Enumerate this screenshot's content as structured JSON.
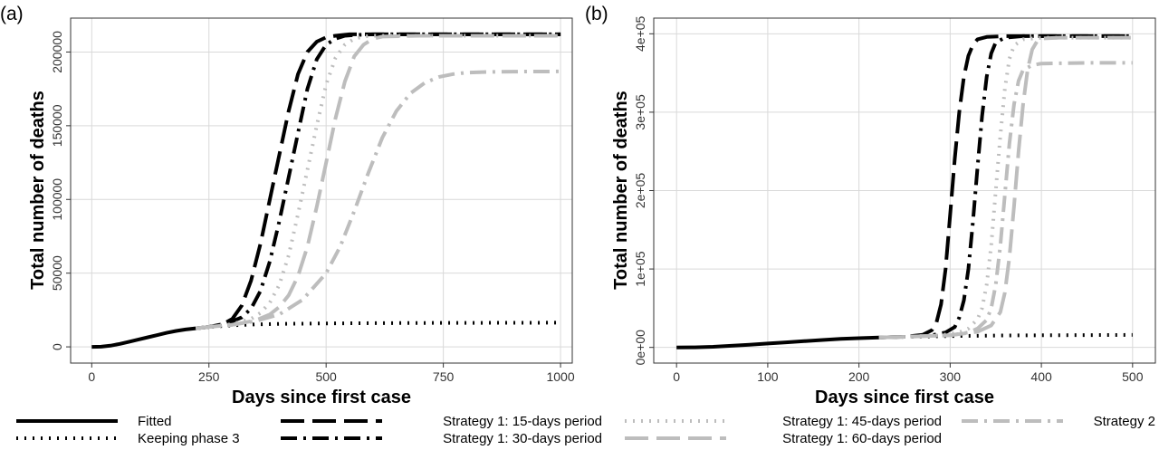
{
  "chart_data": [
    {
      "type": "line",
      "panel_label": "(a)",
      "xlabel": "Days since first case",
      "ylabel": "Total number of deaths",
      "xlim": [
        -45,
        1025
      ],
      "ylim": [
        -11000,
        223000
      ],
      "x_ticks": [
        0,
        250,
        500,
        750,
        1000
      ],
      "y_ticks": [
        0,
        50000,
        100000,
        150000,
        200000
      ],
      "y_tick_labels": [
        "0",
        "50000",
        "100000",
        "150000",
        "200000"
      ],
      "grid": true,
      "series": [
        {
          "name": "Fitted",
          "color": "#000000",
          "style": "solid",
          "x": [
            0,
            20,
            40,
            60,
            80,
            100,
            120,
            140,
            160,
            180,
            200,
            222
          ],
          "y": [
            0,
            100,
            800,
            2000,
            3500,
            5000,
            6500,
            8000,
            9500,
            10800,
            11800,
            12600
          ]
        },
        {
          "name": "Keeping phase 3",
          "color": "#000000",
          "style": "dotted",
          "x": [
            222,
            250,
            300,
            350,
            400,
            500,
            600,
            700,
            800,
            900,
            1000
          ],
          "y": [
            12600,
            13500,
            14600,
            15200,
            15600,
            15900,
            16100,
            16200,
            16300,
            16350,
            16400
          ]
        },
        {
          "name": "Strategy 1: 15-days period",
          "color": "#000000",
          "style": "longdash",
          "x": [
            222,
            250,
            280,
            300,
            320,
            340,
            360,
            380,
            400,
            420,
            440,
            460,
            480,
            500,
            520,
            550,
            600,
            700,
            800,
            1000
          ],
          "y": [
            12600,
            13500,
            15500,
            19000,
            28000,
            45000,
            70000,
            100000,
            130000,
            160000,
            185000,
            200000,
            207000,
            210000,
            211000,
            212000,
            212000,
            212000,
            212000,
            212000
          ]
        },
        {
          "name": "Strategy 1: 30-days period",
          "color": "#000000",
          "style": "dotdash",
          "x": [
            222,
            250,
            290,
            320,
            340,
            360,
            380,
            400,
            420,
            440,
            460,
            480,
            500,
            520,
            540,
            560,
            600,
            700,
            800,
            1000
          ],
          "y": [
            12600,
            13500,
            16000,
            20000,
            26000,
            38000,
            58000,
            85000,
            115000,
            145000,
            175000,
            195000,
            205000,
            209000,
            211000,
            211500,
            212000,
            212000,
            212000,
            212000
          ]
        },
        {
          "name": "Strategy 1: 45-days period",
          "color": "#bdbdbd",
          "style": "dotted",
          "x": [
            222,
            250,
            300,
            340,
            360,
            380,
            400,
            420,
            440,
            460,
            480,
            500,
            520,
            540,
            560,
            580,
            600,
            700,
            800,
            1000
          ],
          "y": [
            12600,
            13500,
            15500,
            19000,
            23000,
            30000,
            42000,
            62000,
            90000,
            120000,
            150000,
            178000,
            196000,
            205000,
            209000,
            210500,
            211000,
            211000,
            211000,
            211000
          ]
        },
        {
          "name": "Strategy 1: 60-days period",
          "color": "#bdbdbd",
          "style": "longdash",
          "x": [
            222,
            250,
            300,
            350,
            380,
            400,
            420,
            440,
            460,
            480,
            500,
            520,
            540,
            560,
            580,
            600,
            620,
            700,
            800,
            1000
          ],
          "y": [
            12600,
            13500,
            15000,
            18000,
            22000,
            27000,
            35000,
            48000,
            68000,
            95000,
            125000,
            155000,
            180000,
            197000,
            205000,
            209000,
            210500,
            211000,
            211000,
            211000
          ]
        },
        {
          "name": "Strategy 2",
          "color": "#bdbdbd",
          "style": "dotdash",
          "x": [
            222,
            250,
            300,
            350,
            400,
            450,
            500,
            530,
            560,
            590,
            620,
            650,
            680,
            710,
            740,
            770,
            800,
            850,
            900,
            1000
          ],
          "y": [
            12600,
            13500,
            15000,
            17500,
            22000,
            32000,
            50000,
            68000,
            92000,
            118000,
            142000,
            160000,
            172000,
            179000,
            183000,
            185000,
            186000,
            186500,
            186700,
            186800
          ]
        }
      ]
    },
    {
      "type": "line",
      "panel_label": "(b)",
      "xlabel": "Days since first case",
      "ylabel": "Total number of deaths",
      "xlim": [
        -25,
        525
      ],
      "ylim": [
        -20000,
        420000
      ],
      "x_ticks": [
        0,
        100,
        200,
        300,
        400,
        500
      ],
      "y_ticks": [
        0,
        100000,
        200000,
        300000,
        400000
      ],
      "y_tick_labels": [
        "0e+00",
        "1e+05",
        "2e+05",
        "3e+05",
        "4e+05"
      ],
      "grid": true,
      "series": [
        {
          "name": "Fitted",
          "color": "#000000",
          "style": "solid",
          "x": [
            0,
            20,
            40,
            60,
            80,
            100,
            120,
            140,
            160,
            180,
            200,
            222
          ],
          "y": [
            0,
            100,
            800,
            2000,
            3500,
            5000,
            6500,
            8000,
            9500,
            10800,
            11800,
            12600
          ]
        },
        {
          "name": "Keeping phase 3",
          "color": "#000000",
          "style": "dotted",
          "x": [
            222,
            250,
            275,
            300,
            325,
            350,
            375,
            400,
            450,
            500
          ],
          "y": [
            12600,
            13500,
            14000,
            14500,
            14800,
            15100,
            15300,
            15500,
            15700,
            15900
          ]
        },
        {
          "name": "Strategy 1: 15-days period",
          "color": "#000000",
          "style": "longdash",
          "x": [
            222,
            250,
            270,
            280,
            285,
            290,
            295,
            300,
            305,
            310,
            315,
            320,
            325,
            330,
            340,
            360,
            400,
            450,
            500
          ],
          "y": [
            12600,
            13500,
            16000,
            22000,
            32000,
            55000,
            100000,
            170000,
            240000,
            300000,
            345000,
            372000,
            386000,
            393000,
            396000,
            397000,
            397000,
            397000,
            397000
          ]
        },
        {
          "name": "Strategy 1: 30-days period",
          "color": "#000000",
          "style": "dotdash",
          "x": [
            222,
            250,
            280,
            295,
            305,
            310,
            315,
            320,
            325,
            330,
            335,
            340,
            345,
            350,
            360,
            380,
            400,
            450,
            500
          ],
          "y": [
            12600,
            13500,
            15500,
            19000,
            26000,
            38000,
            60000,
            100000,
            160000,
            230000,
            295000,
            345000,
            375000,
            389000,
            395000,
            397000,
            397000,
            397000,
            397000
          ]
        },
        {
          "name": "Strategy 1: 45-days period",
          "color": "#bdbdbd",
          "style": "dotted",
          "x": [
            222,
            250,
            290,
            310,
            320,
            330,
            335,
            340,
            345,
            350,
            355,
            360,
            365,
            370,
            380,
            400,
            450,
            500
          ],
          "y": [
            12600,
            13500,
            15500,
            19000,
            24000,
            36000,
            50000,
            80000,
            130000,
            200000,
            270000,
            330000,
            368000,
            385000,
            393000,
            395000,
            395000,
            395000
          ]
        },
        {
          "name": "Strategy 1: 60-days period",
          "color": "#bdbdbd",
          "style": "longdash",
          "x": [
            222,
            250,
            300,
            330,
            345,
            355,
            360,
            365,
            370,
            375,
            380,
            385,
            390,
            395,
            400,
            420,
            450,
            500
          ],
          "y": [
            12600,
            13500,
            15500,
            20000,
            28000,
            45000,
            70000,
            115000,
            180000,
            250000,
            310000,
            355000,
            380000,
            390000,
            394000,
            395000,
            395000,
            395000
          ]
        },
        {
          "name": "Strategy 2",
          "color": "#bdbdbd",
          "style": "dotdash",
          "x": [
            222,
            250,
            300,
            320,
            330,
            340,
            345,
            350,
            355,
            360,
            365,
            370,
            375,
            380,
            390,
            400,
            450,
            500
          ],
          "y": [
            12600,
            13500,
            15500,
            19000,
            24000,
            35000,
            50000,
            80000,
            130000,
            195000,
            260000,
            310000,
            340000,
            354000,
            360000,
            362000,
            363000,
            363000
          ]
        }
      ]
    }
  ],
  "legend": {
    "placement": "bottom",
    "items": [
      {
        "label": "Fitted",
        "color": "#000000",
        "style": "solid"
      },
      {
        "label": "Keeping phase 3",
        "color": "#000000",
        "style": "dotted"
      },
      {
        "label": "Strategy 1: 15-days period",
        "color": "#000000",
        "style": "longdash"
      },
      {
        "label": "Strategy 1: 30-days period",
        "color": "#000000",
        "style": "dotdash"
      },
      {
        "label": "Strategy 1: 45-days period",
        "color": "#bdbdbd",
        "style": "dotted"
      },
      {
        "label": "Strategy 1: 60-days period",
        "color": "#bdbdbd",
        "style": "longdash"
      },
      {
        "label": "Strategy 2",
        "color": "#bdbdbd",
        "style": "dotdash"
      }
    ]
  }
}
